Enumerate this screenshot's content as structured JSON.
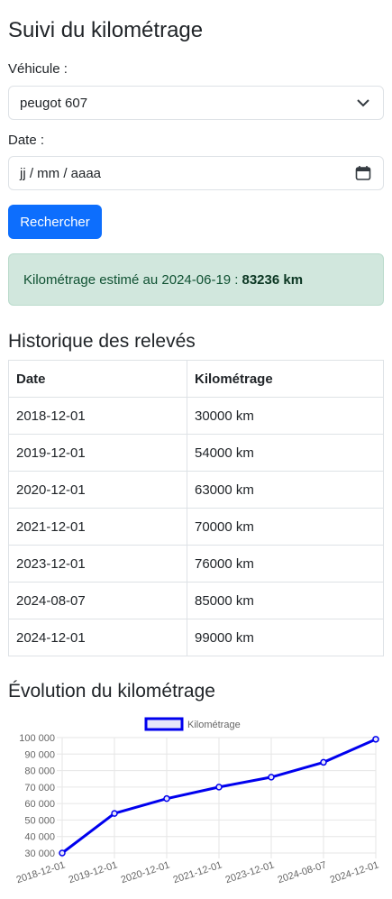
{
  "page": {
    "title": "Suivi du kilométrage",
    "vehicle_label": "Véhicule :",
    "vehicle_value": "peugot 607",
    "date_label": "Date :",
    "date_placeholder": "jj / mm / aaaa",
    "search_button": "Rechercher",
    "estimate_text": "Kilométrage estimé au 2024-06-19 :",
    "estimate_value": "83236 km",
    "history_title": "Historique des relevés",
    "evolution_title": "Évolution du kilométrage"
  },
  "table": {
    "headers": [
      "Date",
      "Kilométrage"
    ],
    "rows": [
      [
        "2018-12-01",
        "30000 km"
      ],
      [
        "2019-12-01",
        "54000 km"
      ],
      [
        "2020-12-01",
        "63000 km"
      ],
      [
        "2021-12-01",
        "70000 km"
      ],
      [
        "2023-12-01",
        "76000 km"
      ],
      [
        "2024-08-07",
        "85000 km"
      ],
      [
        "2024-12-01",
        "99000 km"
      ]
    ]
  },
  "icons": {
    "dropdown": "chevron-down-icon",
    "calendar": "calendar-icon"
  },
  "colors": {
    "primary": "#0d6efd",
    "success_bg": "#d1e7dd",
    "line": "#0000ee"
  },
  "chart_data": {
    "type": "line",
    "categories": [
      "2018-12-01",
      "2019-12-01",
      "2020-12-01",
      "2021-12-01",
      "2023-12-01",
      "2024-08-07",
      "2024-12-01"
    ],
    "series": [
      {
        "name": "Kilométrage",
        "values": [
          30000,
          54000,
          63000,
          70000,
          76000,
          85000,
          99000
        ]
      }
    ],
    "yticks": [
      "30 000",
      "40 000",
      "50 000",
      "60 000",
      "70 000",
      "80 000",
      "90 000",
      "100 000"
    ],
    "ylim": [
      30000,
      100000
    ],
    "legend": "top",
    "grid": true
  }
}
